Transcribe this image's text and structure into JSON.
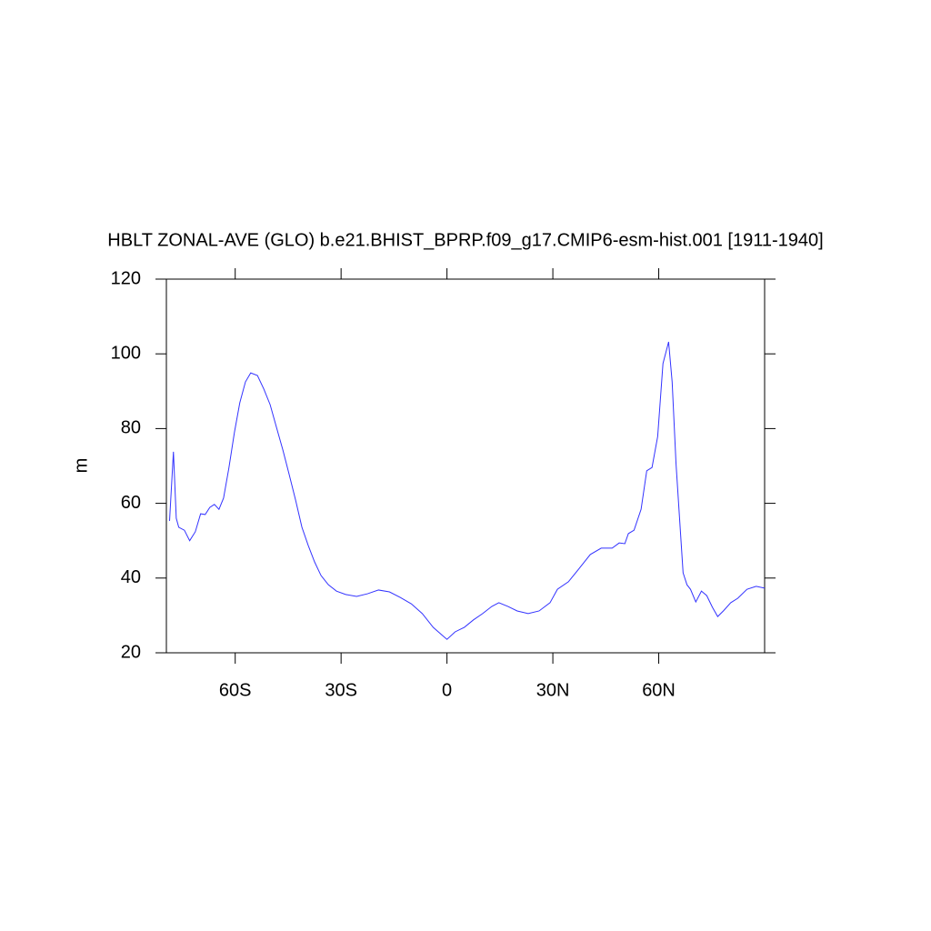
{
  "chart_data": {
    "type": "line",
    "title": "HBLT ZONAL-AVE (GLO) b.e21.BHIST_BPRP.f09_g17.CMIP6-esm-hist.001 [1911-1940]",
    "ylabel": "m",
    "xlim": [
      -79.5,
      90
    ],
    "ylim": [
      20,
      120
    ],
    "xticks": [
      {
        "value": -60,
        "label": "60S"
      },
      {
        "value": -30,
        "label": "30S"
      },
      0,
      {
        "value": 30,
        "label": "30N"
      },
      {
        "value": 60,
        "label": "60N"
      }
    ],
    "yticks": [
      20,
      40,
      60,
      80,
      100,
      120
    ],
    "x": [
      -78.6,
      -77.5,
      -76.7,
      -76,
      -74.4,
      -72.9,
      -71.3,
      -69.8,
      -68.5,
      -67.2,
      -65.9,
      -64.6,
      -63.3,
      -61.8,
      -60.2,
      -58.7,
      -57.1,
      -55.6,
      -53.7,
      -51.9,
      -50.1,
      -48.3,
      -46.5,
      -44.7,
      -42.9,
      -41.1,
      -39.3,
      -37.5,
      -35.7,
      -33.6,
      -31.3,
      -28.7,
      -25.6,
      -22.5,
      -19.4,
      -16.3,
      -13.2,
      -10.1,
      -7,
      -3.9,
      -1.6,
      0,
      2.3,
      4.9,
      7.5,
      10.1,
      12.7,
      14.7,
      17.3,
      19.9,
      23,
      26.1,
      29.2,
      31.3,
      34.4,
      37.5,
      40.6,
      43.7,
      46.8,
      48.8,
      50.4,
      51.4,
      53,
      55,
      56.6,
      58.1,
      59.7,
      61.2,
      62.8,
      63.8,
      64.9,
      65.9,
      66.9,
      68,
      69,
      70.5,
      72.1,
      73.6,
      75.2,
      76.7,
      78.3,
      80.4,
      82.4,
      85,
      87.6,
      90
    ],
    "series": [
      {
        "name": "HBLT",
        "color": "#3333ff",
        "values": [
          55.3,
          73.8,
          56,
          53.6,
          52.8,
          50,
          52.4,
          57.2,
          57,
          58.9,
          59.7,
          58.4,
          61.4,
          69.4,
          79.1,
          86.9,
          92.5,
          94.9,
          94.2,
          90.6,
          86.4,
          80.3,
          74.3,
          67.7,
          60.9,
          53.6,
          48.7,
          44.3,
          40.7,
          38.2,
          36.5,
          35.6,
          35.1,
          35.8,
          36.8,
          36.3,
          34.8,
          33.1,
          30.5,
          26.8,
          24.9,
          23.6,
          25.6,
          26.8,
          28.8,
          30.5,
          32.4,
          33.4,
          32.4,
          31.2,
          30.5,
          31.2,
          33.4,
          37,
          39,
          42.6,
          46.3,
          48,
          48,
          49.4,
          49.2,
          51.9,
          52.8,
          58.4,
          68.7,
          69.6,
          77.9,
          97.4,
          103.2,
          92.5,
          70.6,
          56,
          41.4,
          38.2,
          37,
          33.6,
          36.5,
          35.3,
          32.2,
          29.7,
          31.2,
          33.4,
          34.6,
          37,
          37.8,
          37.3
        ]
      }
    ]
  }
}
